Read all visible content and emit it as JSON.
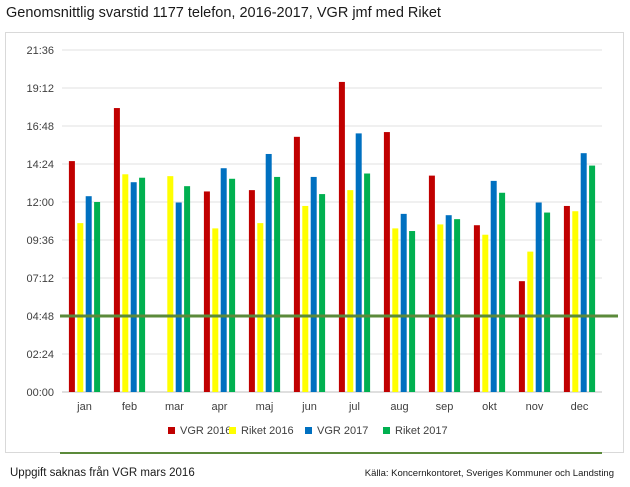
{
  "chart_data": {
    "type": "bar",
    "title": "Genomsnittlig svarstid 1177 telefon, 2016-2017, VGR jmf med Riket",
    "xlabel": "",
    "ylabel": "",
    "categories": [
      "jan",
      "feb",
      "mar",
      "apr",
      "maj",
      "jun",
      "jul",
      "aug",
      "sep",
      "okt",
      "nov",
      "dec"
    ],
    "y_unit": "minutes (mm:ss)",
    "ylim": [
      0,
      1296
    ],
    "y_ticks": [
      "00:00",
      "02:24",
      "04:48",
      "07:12",
      "09:36",
      "12:00",
      "14:24",
      "16:48",
      "19:12",
      "21:36"
    ],
    "grid": true,
    "legend_position": "bottom",
    "series": [
      {
        "name": "VGR 2016",
        "color": "#c00000",
        "values": [
          875,
          1076,
          null,
          760,
          765,
          967,
          1175,
          985,
          820,
          632,
          420,
          705
        ]
      },
      {
        "name": "Riket 2016",
        "color": "#ffff00",
        "values": [
          640,
          825,
          818,
          620,
          640,
          705,
          765,
          620,
          635,
          596,
          532,
          685
        ]
      },
      {
        "name": "VGR 2017",
        "color": "#0070c0",
        "values": [
          742,
          795,
          718,
          848,
          902,
          815,
          980,
          675,
          670,
          800,
          718,
          905
        ]
      },
      {
        "name": "Riket 2017",
        "color": "#00b050",
        "values": [
          720,
          812,
          780,
          808,
          815,
          750,
          828,
          610,
          655,
          755,
          680,
          858
        ]
      }
    ],
    "reference_line": {
      "value": 288,
      "color": "#5b8a3a"
    }
  },
  "footnotes": {
    "left": "Uppgift saknas från VGR mars 2016",
    "right": "Källa: Koncernkontoret, Sveriges Kommuner och Landsting"
  }
}
